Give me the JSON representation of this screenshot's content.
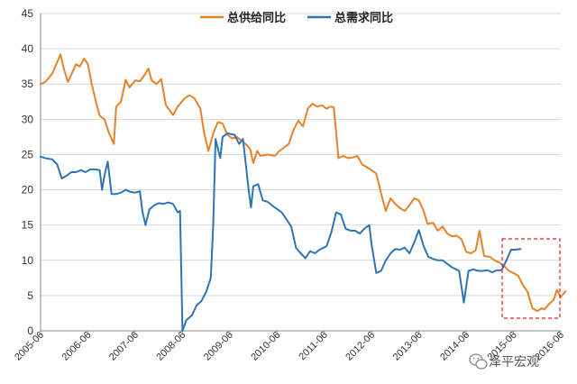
{
  "chart_data": {
    "type": "line",
    "title": "",
    "xlabel": "",
    "ylabel": "",
    "ylim": [
      0,
      45
    ],
    "yticks": [
      "0",
      "5",
      "10",
      "15",
      "20",
      "25",
      "30",
      "35",
      "40",
      "45"
    ],
    "x_start": 2005.5,
    "x_end": 2016.5,
    "xticks": [
      "2005-06",
      "2006-06",
      "2007-06",
      "2008-06",
      "2009-06",
      "2010-06",
      "2011-06",
      "2012-06",
      "2013-06",
      "2014-06",
      "2015-06",
      "2016-06"
    ],
    "legend_position": "top-center",
    "series": [
      {
        "name": "总供给同比",
        "color": "#E8822A",
        "points": [
          [
            2005.5,
            35
          ],
          [
            2005.6,
            35.3
          ],
          [
            2005.75,
            36.5
          ],
          [
            2005.92,
            39.2
          ],
          [
            2006.0,
            37.0
          ],
          [
            2006.08,
            35.3
          ],
          [
            2006.25,
            37.8
          ],
          [
            2006.33,
            37.5
          ],
          [
            2006.42,
            38.6
          ],
          [
            2006.5,
            37.8
          ],
          [
            2006.58,
            35.0
          ],
          [
            2006.67,
            32.5
          ],
          [
            2006.75,
            30.5
          ],
          [
            2006.85,
            30.0
          ],
          [
            2006.95,
            28.0
          ],
          [
            2007.05,
            26.5
          ],
          [
            2007.1,
            31.8
          ],
          [
            2007.2,
            32.5
          ],
          [
            2007.3,
            35.6
          ],
          [
            2007.38,
            34.5
          ],
          [
            2007.5,
            35.5
          ],
          [
            2007.6,
            35.4
          ],
          [
            2007.7,
            36.3
          ],
          [
            2007.78,
            37.2
          ],
          [
            2007.85,
            35.5
          ],
          [
            2007.95,
            35.0
          ],
          [
            2008.05,
            35.7
          ],
          [
            2008.15,
            32.0
          ],
          [
            2008.3,
            30.6
          ],
          [
            2008.4,
            31.8
          ],
          [
            2008.55,
            33.0
          ],
          [
            2008.65,
            33.4
          ],
          [
            2008.75,
            33.0
          ],
          [
            2008.88,
            31.5
          ],
          [
            2008.96,
            28.0
          ],
          [
            2009.05,
            25.5
          ],
          [
            2009.15,
            28.0
          ],
          [
            2009.25,
            29.6
          ],
          [
            2009.35,
            29.4
          ],
          [
            2009.45,
            27.8
          ],
          [
            2009.55,
            27.3
          ],
          [
            2009.65,
            27.5
          ],
          [
            2009.75,
            27.0
          ],
          [
            2009.85,
            26.4
          ],
          [
            2009.93,
            25.8
          ],
          [
            2010.0,
            23.8
          ],
          [
            2010.08,
            25.5
          ],
          [
            2010.15,
            24.8
          ],
          [
            2010.3,
            25.0
          ],
          [
            2010.45,
            24.8
          ],
          [
            2010.55,
            25.5
          ],
          [
            2010.65,
            26.0
          ],
          [
            2010.75,
            26.5
          ],
          [
            2010.85,
            28.5
          ],
          [
            2010.95,
            29.8
          ],
          [
            2011.05,
            29.0
          ],
          [
            2011.15,
            31.5
          ],
          [
            2011.25,
            32.2
          ],
          [
            2011.35,
            31.8
          ],
          [
            2011.45,
            32.0
          ],
          [
            2011.55,
            31.5
          ],
          [
            2011.62,
            31.8
          ],
          [
            2011.7,
            31.7
          ],
          [
            2011.8,
            24.5
          ],
          [
            2011.9,
            24.8
          ],
          [
            2012.0,
            24.5
          ],
          [
            2012.1,
            24.6
          ],
          [
            2012.2,
            24.8
          ],
          [
            2012.3,
            23.6
          ],
          [
            2012.45,
            23.0
          ],
          [
            2012.6,
            22.3
          ],
          [
            2012.7,
            19.5
          ],
          [
            2012.8,
            17.0
          ],
          [
            2012.9,
            18.8
          ],
          [
            2013.0,
            18.0
          ],
          [
            2013.1,
            17.4
          ],
          [
            2013.2,
            17.0
          ],
          [
            2013.3,
            17.8
          ],
          [
            2013.4,
            18.8
          ],
          [
            2013.5,
            18.5
          ],
          [
            2013.6,
            17.0
          ],
          [
            2013.68,
            15.2
          ],
          [
            2013.8,
            15.3
          ],
          [
            2013.9,
            14.2
          ],
          [
            2014.0,
            14.8
          ],
          [
            2014.1,
            13.8
          ],
          [
            2014.2,
            13.4
          ],
          [
            2014.3,
            13.5
          ],
          [
            2014.4,
            13.0
          ],
          [
            2014.5,
            11.2
          ],
          [
            2014.6,
            11.0
          ],
          [
            2014.7,
            11.4
          ],
          [
            2014.78,
            14.2
          ],
          [
            2014.88,
            10.6
          ],
          [
            2015.0,
            10.5
          ],
          [
            2015.1,
            10.0
          ],
          [
            2015.2,
            9.7
          ],
          [
            2015.3,
            9.2
          ],
          [
            2015.4,
            8.5
          ],
          [
            2015.5,
            8.2
          ],
          [
            2015.6,
            7.8
          ],
          [
            2015.7,
            6.5
          ],
          [
            2015.8,
            5.5
          ],
          [
            2015.9,
            3.2
          ],
          [
            2016.0,
            2.8
          ],
          [
            2016.1,
            3.2
          ],
          [
            2016.15,
            3.0
          ],
          [
            2016.25,
            3.8
          ],
          [
            2016.35,
            4.4
          ],
          [
            2016.42,
            5.8
          ],
          [
            2016.5,
            4.8
          ],
          [
            2016.6,
            5.6
          ]
        ]
      },
      {
        "name": "总需求同比",
        "color": "#2E75B6",
        "points": [
          [
            2005.5,
            24.7
          ],
          [
            2005.6,
            24.5
          ],
          [
            2005.75,
            24.3
          ],
          [
            2005.85,
            23.6
          ],
          [
            2005.95,
            21.6
          ],
          [
            2006.05,
            22.0
          ],
          [
            2006.15,
            22.5
          ],
          [
            2006.25,
            22.5
          ],
          [
            2006.35,
            22.8
          ],
          [
            2006.45,
            22.5
          ],
          [
            2006.55,
            22.9
          ],
          [
            2006.65,
            22.9
          ],
          [
            2006.75,
            22.8
          ],
          [
            2006.8,
            20.0
          ],
          [
            2006.85,
            22.0
          ],
          [
            2006.92,
            24.0
          ],
          [
            2007.0,
            19.4
          ],
          [
            2007.1,
            19.4
          ],
          [
            2007.2,
            19.6
          ],
          [
            2007.3,
            20.0
          ],
          [
            2007.4,
            19.7
          ],
          [
            2007.5,
            19.6
          ],
          [
            2007.6,
            19.8
          ],
          [
            2007.65,
            17.0
          ],
          [
            2007.72,
            15.0
          ],
          [
            2007.8,
            17.2
          ],
          [
            2007.9,
            17.8
          ],
          [
            2008.0,
            18.1
          ],
          [
            2008.1,
            18.0
          ],
          [
            2008.2,
            18.2
          ],
          [
            2008.3,
            18.0
          ],
          [
            2008.4,
            16.8
          ],
          [
            2008.45,
            17.0
          ],
          [
            2008.5,
            0
          ],
          [
            2008.58,
            1.5
          ],
          [
            2008.7,
            2.2
          ],
          [
            2008.8,
            3.6
          ],
          [
            2008.9,
            4.2
          ],
          [
            2009.0,
            5.5
          ],
          [
            2009.1,
            7.5
          ],
          [
            2009.15,
            15.0
          ],
          [
            2009.2,
            27.2
          ],
          [
            2009.3,
            24.5
          ],
          [
            2009.35,
            27.5
          ],
          [
            2009.45,
            28.0
          ],
          [
            2009.6,
            27.8
          ],
          [
            2009.7,
            26.5
          ],
          [
            2009.78,
            27.2
          ],
          [
            2009.85,
            23.0
          ],
          [
            2009.9,
            20.0
          ],
          [
            2009.95,
            17.5
          ],
          [
            2010.0,
            20.5
          ],
          [
            2010.1,
            20.8
          ],
          [
            2010.2,
            18.5
          ],
          [
            2010.3,
            18.3
          ],
          [
            2010.45,
            17.5
          ],
          [
            2010.6,
            16.8
          ],
          [
            2010.7,
            15.8
          ],
          [
            2010.8,
            14.8
          ],
          [
            2010.9,
            11.8
          ],
          [
            2011.0,
            11.0
          ],
          [
            2011.1,
            10.3
          ],
          [
            2011.2,
            11.3
          ],
          [
            2011.3,
            11.0
          ],
          [
            2011.4,
            11.5
          ],
          [
            2011.55,
            12.0
          ],
          [
            2011.65,
            14.0
          ],
          [
            2011.75,
            16.8
          ],
          [
            2011.85,
            16.5
          ],
          [
            2011.95,
            14.5
          ],
          [
            2012.05,
            14.2
          ],
          [
            2012.15,
            14.2
          ],
          [
            2012.25,
            13.8
          ],
          [
            2012.35,
            14.5
          ],
          [
            2012.45,
            15.0
          ],
          [
            2012.5,
            12.2
          ],
          [
            2012.6,
            8.2
          ],
          [
            2012.7,
            8.5
          ],
          [
            2012.8,
            10.0
          ],
          [
            2012.9,
            11.0
          ],
          [
            2013.0,
            11.6
          ],
          [
            2013.1,
            11.5
          ],
          [
            2013.2,
            11.8
          ],
          [
            2013.3,
            11.0
          ],
          [
            2013.4,
            12.5
          ],
          [
            2013.5,
            14.3
          ],
          [
            2013.6,
            12.0
          ],
          [
            2013.7,
            10.5
          ],
          [
            2013.8,
            10.2
          ],
          [
            2013.9,
            10.0
          ],
          [
            2014.0,
            10.0
          ],
          [
            2014.1,
            9.5
          ],
          [
            2014.2,
            9.0
          ],
          [
            2014.35,
            8.5
          ],
          [
            2014.45,
            4.0
          ],
          [
            2014.55,
            8.5
          ],
          [
            2014.65,
            8.7
          ],
          [
            2014.75,
            8.5
          ],
          [
            2014.85,
            8.5
          ],
          [
            2014.95,
            8.6
          ],
          [
            2015.05,
            8.3
          ],
          [
            2015.15,
            8.6
          ],
          [
            2015.25,
            8.6
          ],
          [
            2015.35,
            10.0
          ],
          [
            2015.45,
            11.5
          ],
          [
            2015.55,
            11.5
          ],
          [
            2015.65,
            11.6
          ]
        ]
      }
    ],
    "annotation": "dashed red box highlighting the most recent period"
  },
  "watermark": {
    "text": "泽平宏观"
  }
}
